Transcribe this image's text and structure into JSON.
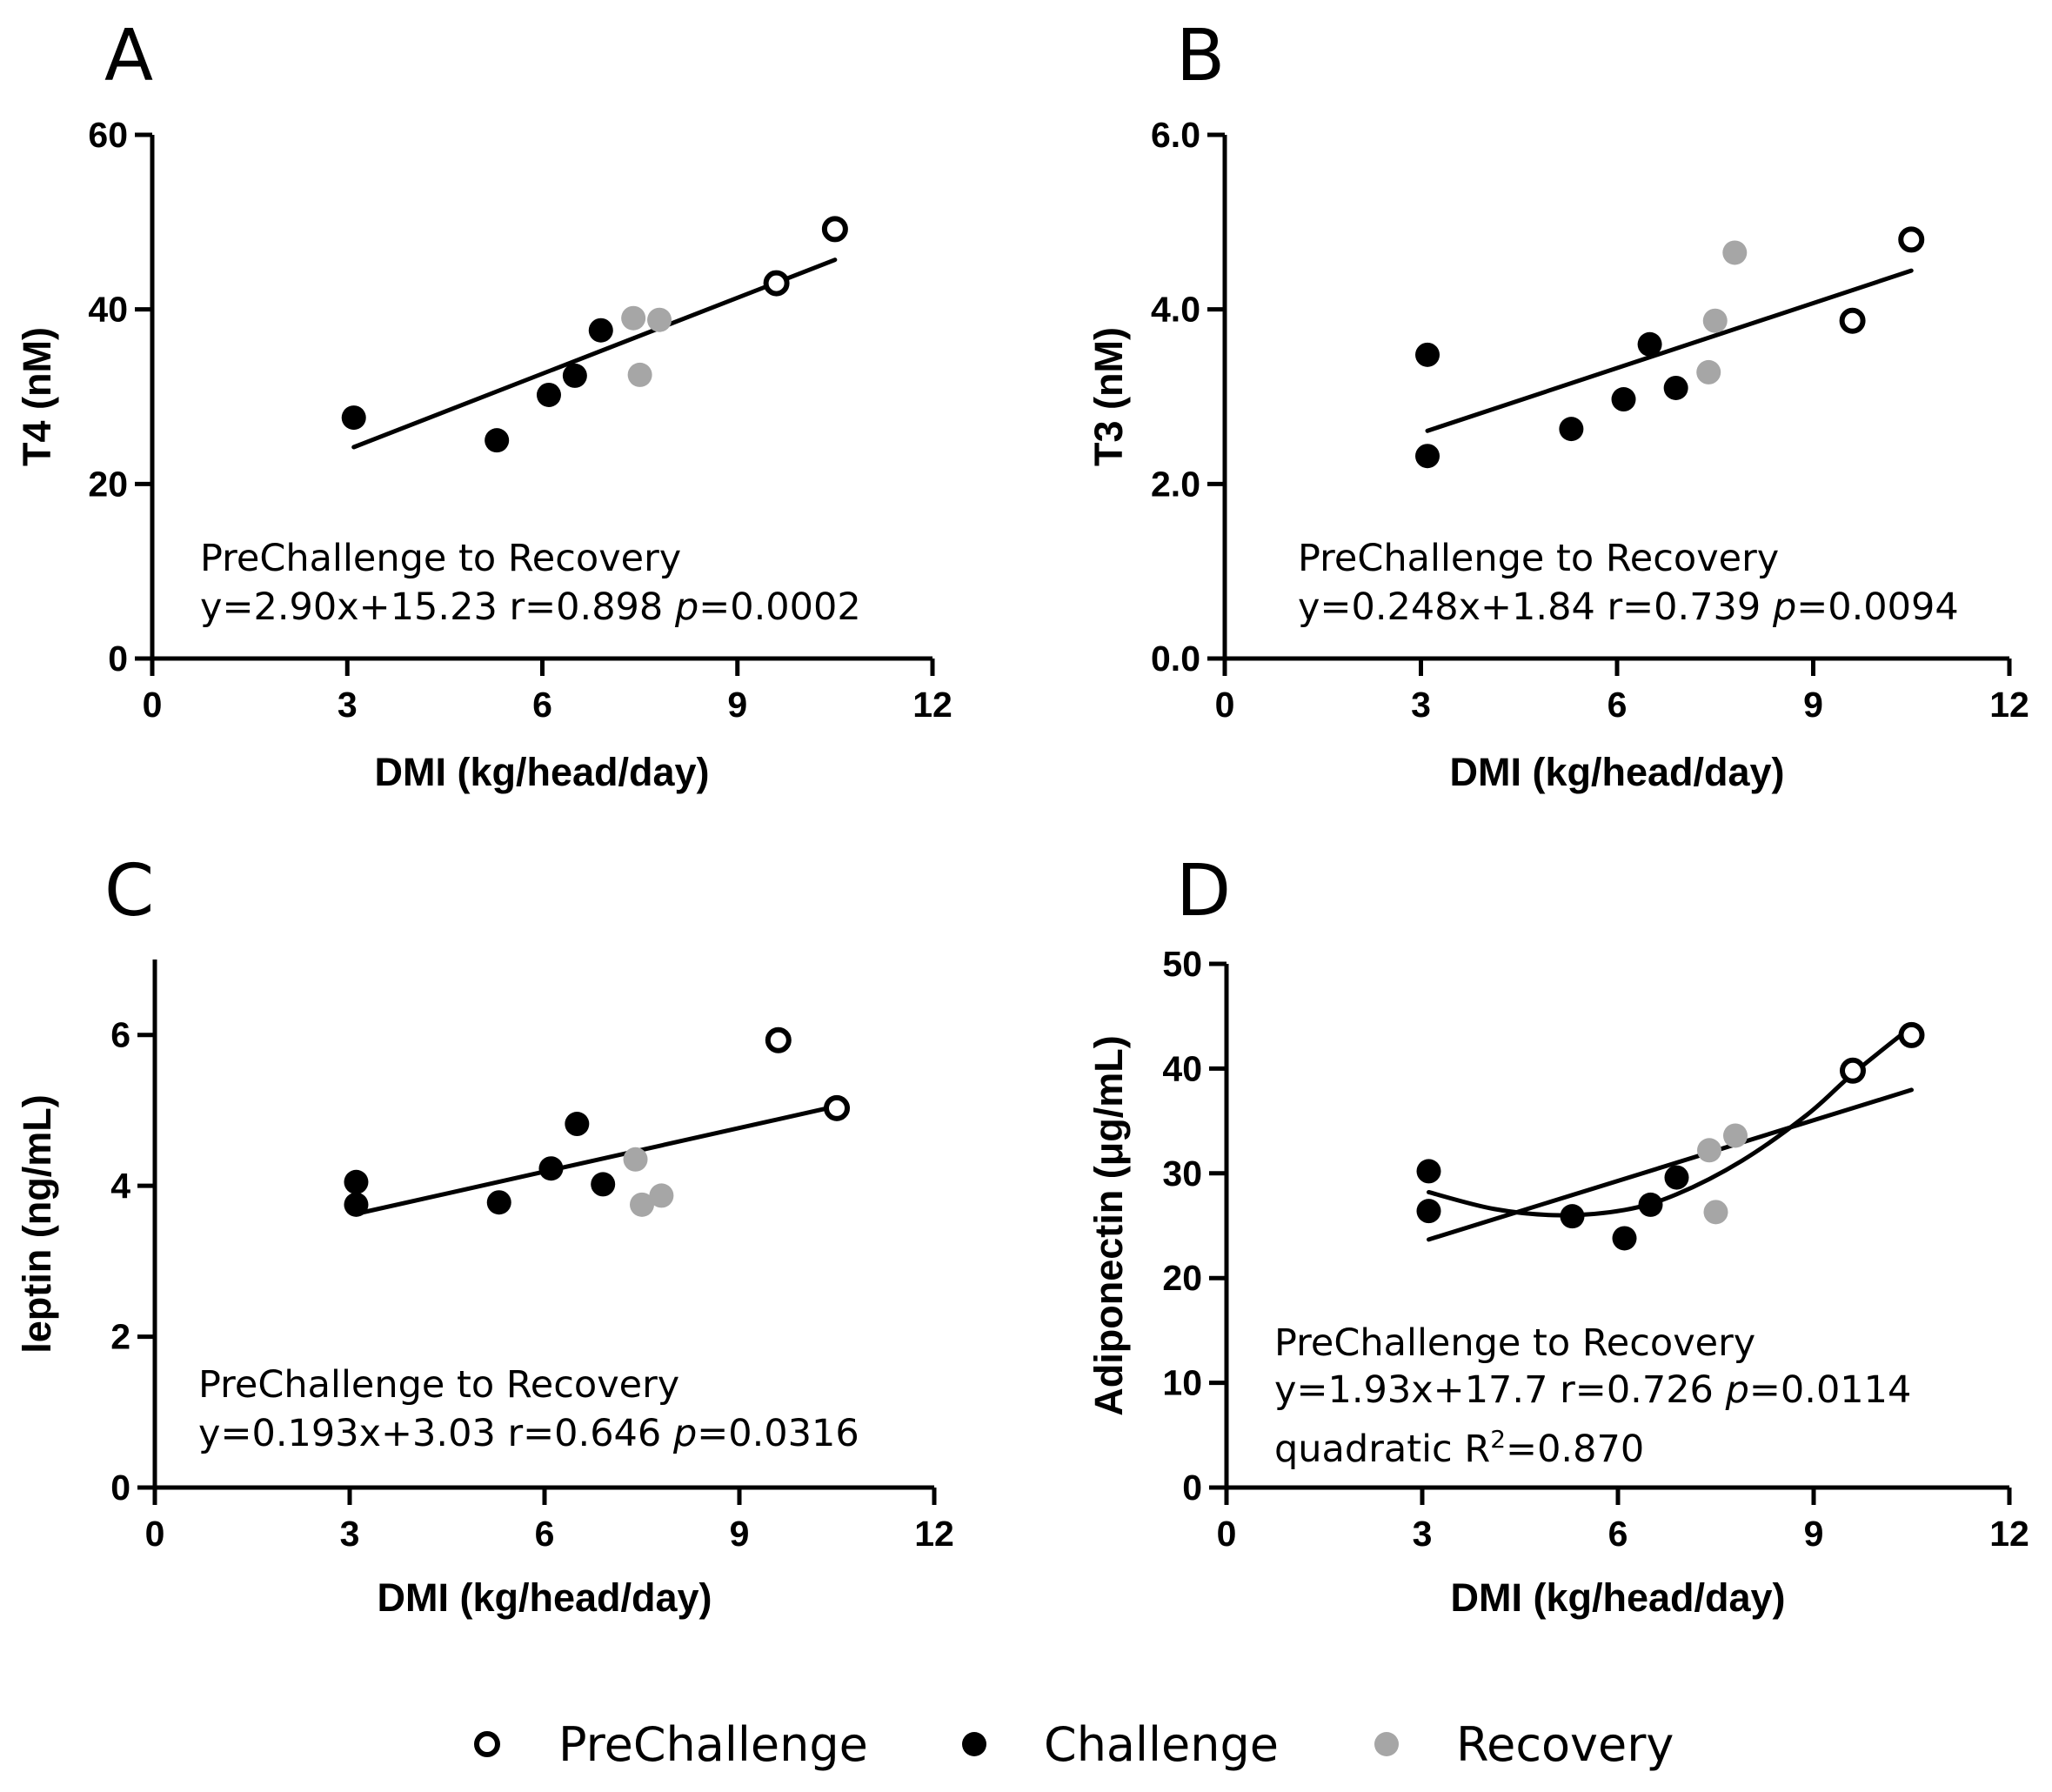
{
  "legend": {
    "entries": [
      {
        "name": "PreChallenge",
        "fill": "#ffffff",
        "stroke": "#000000"
      },
      {
        "name": "Challenge",
        "fill": "#000000",
        "stroke": "#000000"
      },
      {
        "name": "Recovery",
        "fill": "#a6a6a6",
        "stroke": "#a6a6a6"
      }
    ]
  },
  "chart_data": [
    {
      "panel": "A",
      "type": "scatter",
      "xlabel": "DMI (kg/head/day)",
      "ylabel": "T4 (nM)",
      "xlim": [
        0,
        12
      ],
      "ylim": [
        0,
        60
      ],
      "xticks": [
        "0",
        "3",
        "6",
        "9",
        "12"
      ],
      "xtick_values": [
        0,
        3,
        6,
        9,
        12
      ],
      "yticks": [
        "0",
        "20",
        "40",
        "60"
      ],
      "ytick_values": [
        0,
        20,
        40,
        60
      ],
      "series": [
        {
          "name": "PreChallenge",
          "points": [
            [
              9.6,
              43.0
            ],
            [
              10.5,
              49.2
            ]
          ]
        },
        {
          "name": "Challenge",
          "points": [
            [
              3.1,
              27.6
            ],
            [
              5.3,
              25.0
            ],
            [
              6.1,
              30.2
            ],
            [
              6.5,
              32.4
            ],
            [
              6.9,
              37.6
            ]
          ]
        },
        {
          "name": "Recovery",
          "points": [
            [
              7.4,
              39.0
            ],
            [
              7.8,
              38.8
            ],
            [
              7.5,
              32.5
            ]
          ]
        }
      ],
      "fits": [
        {
          "kind": "linear",
          "slope": 2.9,
          "intercept": 15.23,
          "x_range": [
            3.1,
            10.5
          ]
        }
      ],
      "annotation": {
        "title": "PreChallenge to Recovery",
        "eq": "y=2.90x+15.23 r=0.898 ",
        "p_label": "p",
        "p_value": "=0.0002"
      }
    },
    {
      "panel": "B",
      "type": "scatter",
      "xlabel": "DMI (kg/head/day)",
      "ylabel": "T3 (nM)",
      "xlim": [
        0,
        12
      ],
      "ylim": [
        0,
        6
      ],
      "xticks": [
        "0",
        "3",
        "6",
        "9",
        "12"
      ],
      "xtick_values": [
        0,
        3,
        6,
        9,
        12
      ],
      "yticks": [
        "0.0",
        "2.0",
        "4.0",
        "6.0"
      ],
      "ytick_values": [
        0,
        2,
        4,
        6
      ],
      "series": [
        {
          "name": "PreChallenge",
          "points": [
            [
              9.6,
              3.87
            ],
            [
              10.5,
              4.8
            ]
          ]
        },
        {
          "name": "Challenge",
          "points": [
            [
              3.1,
              3.48
            ],
            [
              3.1,
              2.32
            ],
            [
              5.3,
              2.63
            ],
            [
              6.1,
              2.97
            ],
            [
              6.5,
              3.6
            ],
            [
              6.9,
              3.1
            ]
          ]
        },
        {
          "name": "Recovery",
          "points": [
            [
              7.4,
              3.28
            ],
            [
              7.5,
              3.87
            ],
            [
              7.8,
              4.65
            ]
          ]
        }
      ],
      "fits": [
        {
          "kind": "linear",
          "slope": 0.248,
          "intercept": 1.84,
          "x_range": [
            3.1,
            10.5
          ]
        }
      ],
      "annotation": {
        "title": "PreChallenge to Recovery",
        "eq": "y=0.248x+1.84 r=0.739 ",
        "p_label": "p",
        "p_value": "=0.0094"
      }
    },
    {
      "panel": "C",
      "type": "scatter",
      "xlabel": "DMI (kg/head/day)",
      "ylabel": "leptin (ng/mL)",
      "xlim": [
        0,
        12
      ],
      "ylim": [
        0,
        7
      ],
      "xticks": [
        "0",
        "3",
        "6",
        "9",
        "12"
      ],
      "xtick_values": [
        0,
        3,
        6,
        9,
        12
      ],
      "yticks": [
        "0",
        "2",
        "4",
        "6"
      ],
      "ytick_values": [
        0,
        2,
        4,
        6
      ],
      "series": [
        {
          "name": "PreChallenge",
          "points": [
            [
              9.6,
              5.93
            ],
            [
              10.5,
              5.03
            ]
          ]
        },
        {
          "name": "Challenge",
          "points": [
            [
              3.1,
              4.05
            ],
            [
              3.1,
              3.75
            ],
            [
              5.3,
              3.78
            ],
            [
              6.1,
              4.23
            ],
            [
              6.5,
              4.82
            ],
            [
              6.9,
              4.02
            ]
          ]
        },
        {
          "name": "Recovery",
          "points": [
            [
              7.4,
              4.35
            ],
            [
              7.5,
              3.75
            ],
            [
              7.8,
              3.87
            ]
          ]
        }
      ],
      "fits": [
        {
          "kind": "linear",
          "slope": 0.193,
          "intercept": 3.03,
          "x_range": [
            3.1,
            10.5
          ]
        }
      ],
      "annotation": {
        "title": "PreChallenge to Recovery",
        "eq": "y=0.193x+3.03 r=0.646 ",
        "p_label": "p",
        "p_value": "=0.0316"
      }
    },
    {
      "panel": "D",
      "type": "scatter",
      "xlabel": "DMI (kg/head/day)",
      "ylabel": "Adiponectin (μg/mL)",
      "xlim": [
        0,
        12
      ],
      "ylim": [
        0,
        50
      ],
      "xticks": [
        "0",
        "3",
        "6",
        "9",
        "12"
      ],
      "xtick_values": [
        0,
        3,
        6,
        9,
        12
      ],
      "yticks": [
        "0",
        "10",
        "20",
        "30",
        "40",
        "50"
      ],
      "ytick_values": [
        0,
        10,
        20,
        30,
        40,
        50
      ],
      "series": [
        {
          "name": "PreChallenge",
          "points": [
            [
              9.6,
              39.8
            ],
            [
              10.5,
              43.2
            ]
          ]
        },
        {
          "name": "Challenge",
          "points": [
            [
              3.1,
              30.2
            ],
            [
              3.1,
              26.4
            ],
            [
              5.3,
              25.9
            ],
            [
              6.1,
              23.8
            ],
            [
              6.5,
              27.0
            ],
            [
              6.9,
              29.6
            ]
          ]
        },
        {
          "name": "Recovery",
          "points": [
            [
              7.4,
              32.2
            ],
            [
              7.8,
              33.6
            ],
            [
              7.5,
              26.3
            ]
          ]
        }
      ],
      "fits": [
        {
          "kind": "linear",
          "slope": 1.93,
          "intercept": 17.7,
          "x_range": [
            3.1,
            10.5
          ]
        },
        {
          "kind": "quadratic",
          "points": [
            [
              3.1,
              28.2
            ],
            [
              4.1,
              26.6
            ],
            [
              5.1,
              26.0
            ],
            [
              6.1,
              26.5
            ],
            [
              6.9,
              28.0
            ],
            [
              7.9,
              31.2
            ],
            [
              8.9,
              35.6
            ],
            [
              9.6,
              39.5
            ],
            [
              10.5,
              44.0
            ]
          ]
        }
      ],
      "annotation": {
        "title": "PreChallenge to Recovery",
        "eq": "y=1.93x+17.7 r=0.726 ",
        "p_label": "p",
        "p_value": "=0.0114",
        "quad_prefix": "quadratic R",
        "quad_sup": "2",
        "quad_value": "=0.870"
      }
    }
  ]
}
